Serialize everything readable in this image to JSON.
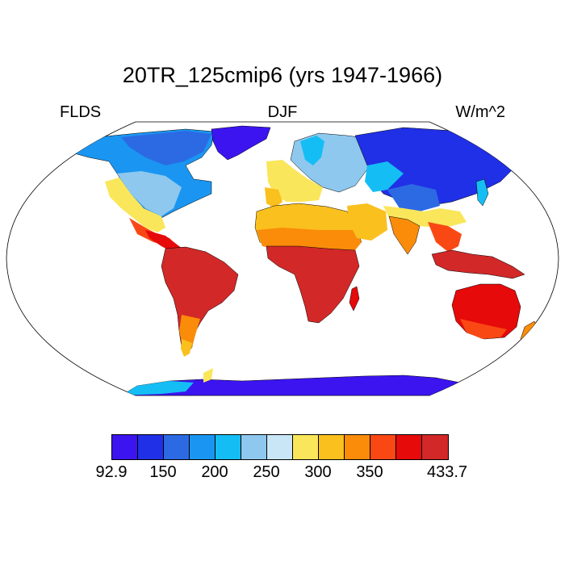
{
  "title": "20TR_125cmip6 (yrs 1947-1966)",
  "subtitle_left": "FLDS",
  "subtitle_center": "DJF",
  "subtitle_right": "W/m^2",
  "map_data": {
    "type": "filled-contour world map",
    "projection": "Robinson",
    "variable": "FLDS",
    "season": "DJF",
    "units": "W/m^2",
    "range": [
      92.9,
      433.7
    ]
  },
  "colorbar": {
    "colors": [
      "#3c14f0",
      "#2030e6",
      "#2c6ae4",
      "#1a96f2",
      "#14bef4",
      "#8ec8ee",
      "#c8e6f6",
      "#fae65a",
      "#fac01e",
      "#fa8c0a",
      "#fa4814",
      "#e60a0a",
      "#d22828"
    ],
    "tick_labels": [
      {
        "label": "92.9",
        "position": 0
      },
      {
        "label": "150",
        "position": 2
      },
      {
        "label": "200",
        "position": 4
      },
      {
        "label": "250",
        "position": 6
      },
      {
        "label": "300",
        "position": 8
      },
      {
        "label": "350",
        "position": 10
      },
      {
        "label": "433.7",
        "position": 13
      }
    ]
  }
}
